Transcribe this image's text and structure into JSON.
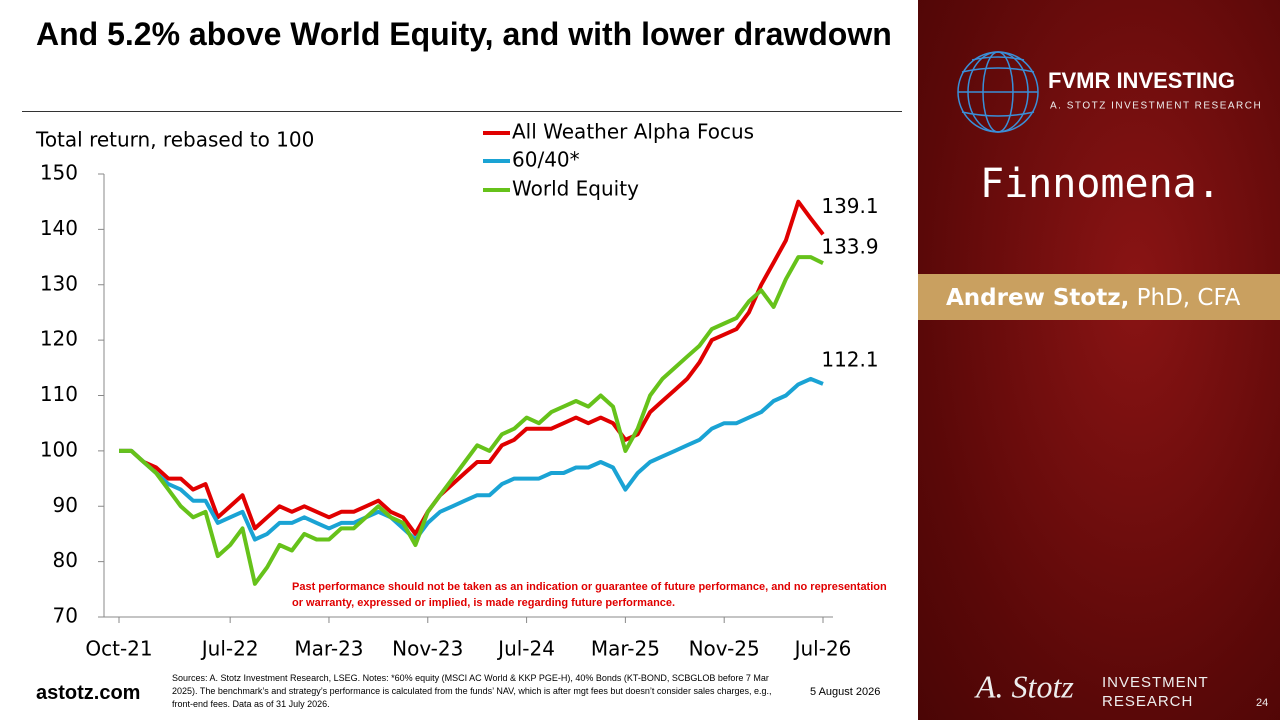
{
  "slide": {
    "title": "And 5.2% above World Equity, and with lower drawdown",
    "disclaimer": "Past performance should not be taken as an indication or guarantee of future performance, and no representation or warranty, expressed or implied, is made regarding future performance.",
    "website": "astotz.com",
    "sources": "Sources: A. Stotz Investment Research, LSEG. Notes: *60% equity (MSCI AC World & KKP PGE-H), 40% Bonds (KT-BOND, SCBGLOB before 7 Mar 2025). The benchmark’s and strategy’s performance is calculated from the funds’ NAV, which is after mgt fees but doesn’t consider sales charges, e.g., front-end fees. Data as of 31 July 2026.",
    "date": "5 August 2026",
    "page_number": "24",
    "brand": "FVMR INVESTING",
    "brand_sub": "A. STOTZ INVESTMENT RESEARCH",
    "partner": "Finnomena.",
    "presenter_name": "Andrew Stotz,",
    "presenter_credentials": "PhD, CFA",
    "signature": "A. Stotz",
    "footer_brand_1": "INVESTMENT",
    "footer_brand_2": "RESEARCH"
  },
  "chart_data": {
    "type": "line",
    "y_label": "Total return, rebased to 100",
    "x": [
      "2021-10",
      "2021-11",
      "2021-12",
      "2022-01",
      "2022-02",
      "2022-03",
      "2022-04",
      "2022-05",
      "2022-06",
      "2022-07",
      "2022-08",
      "2022-09",
      "2022-10",
      "2022-11",
      "2022-12",
      "2023-01",
      "2023-02",
      "2023-03",
      "2023-04",
      "2023-05",
      "2023-06",
      "2023-07",
      "2023-08",
      "2023-09",
      "2023-10",
      "2023-11",
      "2023-12",
      "2024-01",
      "2024-02",
      "2024-03",
      "2024-04",
      "2024-05",
      "2024-06",
      "2024-07",
      "2024-08",
      "2024-09",
      "2024-10",
      "2024-11",
      "2024-12",
      "2025-01",
      "2025-02",
      "2025-03",
      "2025-04",
      "2025-05",
      "2025-06",
      "2025-07",
      "2025-08",
      "2025-09",
      "2025-10",
      "2025-11",
      "2025-12",
      "2026-01",
      "2026-02",
      "2026-03",
      "2026-04",
      "2026-05",
      "2026-06",
      "2026-07"
    ],
    "series": [
      {
        "name": "All Weather Alpha Focus",
        "color": "#e00000",
        "values": [
          100,
          100,
          98,
          97,
          95,
          95,
          93,
          94,
          88,
          90,
          92,
          86,
          88,
          90,
          89,
          90,
          89,
          88,
          89,
          89,
          90,
          91,
          89,
          88,
          85,
          89,
          92,
          94,
          96,
          98,
          98,
          101,
          102,
          104,
          104,
          104,
          105,
          106,
          105,
          106,
          105,
          102,
          103,
          107,
          109,
          111,
          113,
          116,
          120,
          121,
          122,
          125,
          130,
          134,
          138,
          145,
          142,
          139.1
        ]
      },
      {
        "name": "60/40*",
        "color": "#1aa3d4",
        "values": [
          100,
          100,
          98,
          96,
          94,
          93,
          91,
          91,
          87,
          88,
          89,
          84,
          85,
          87,
          87,
          88,
          87,
          86,
          87,
          87,
          88,
          89,
          88,
          86,
          84,
          87,
          89,
          90,
          91,
          92,
          92,
          94,
          95,
          95,
          95,
          96,
          96,
          97,
          97,
          98,
          97,
          93,
          96,
          98,
          99,
          100,
          101,
          102,
          104,
          105,
          105,
          106,
          107,
          109,
          110,
          112,
          113,
          112.1
        ]
      },
      {
        "name": "World Equity",
        "color": "#66c21a",
        "values": [
          100,
          100,
          98,
          96,
          93,
          90,
          88,
          89,
          81,
          83,
          86,
          76,
          79,
          83,
          82,
          85,
          84,
          84,
          86,
          86,
          88,
          90,
          88,
          87,
          83,
          89,
          92,
          95,
          98,
          101,
          100,
          103,
          104,
          106,
          105,
          107,
          108,
          109,
          108,
          110,
          108,
          100,
          104,
          110,
          113,
          115,
          117,
          119,
          122,
          123,
          124,
          127,
          129,
          126,
          131,
          135,
          135,
          133.9
        ]
      }
    ],
    "xlim": [
      "2021-10",
      "2026-07"
    ],
    "xticks": [
      {
        "value": "2021-10",
        "label": "Oct-21"
      },
      {
        "value": "2022-07",
        "label": "Jul-22"
      },
      {
        "value": "2023-03",
        "label": "Mar-23"
      },
      {
        "value": "2023-11",
        "label": "Nov-23"
      },
      {
        "value": "2024-07",
        "label": "Jul-24"
      },
      {
        "value": "2025-03",
        "label": "Mar-25"
      },
      {
        "value": "2025-11",
        "label": "Nov-25"
      },
      {
        "value": "2026-07",
        "label": "Jul-26"
      }
    ],
    "ylim": [
      70,
      150
    ],
    "yticks": [
      70,
      80,
      90,
      100,
      110,
      120,
      130,
      140,
      150
    ],
    "grid": false
  }
}
